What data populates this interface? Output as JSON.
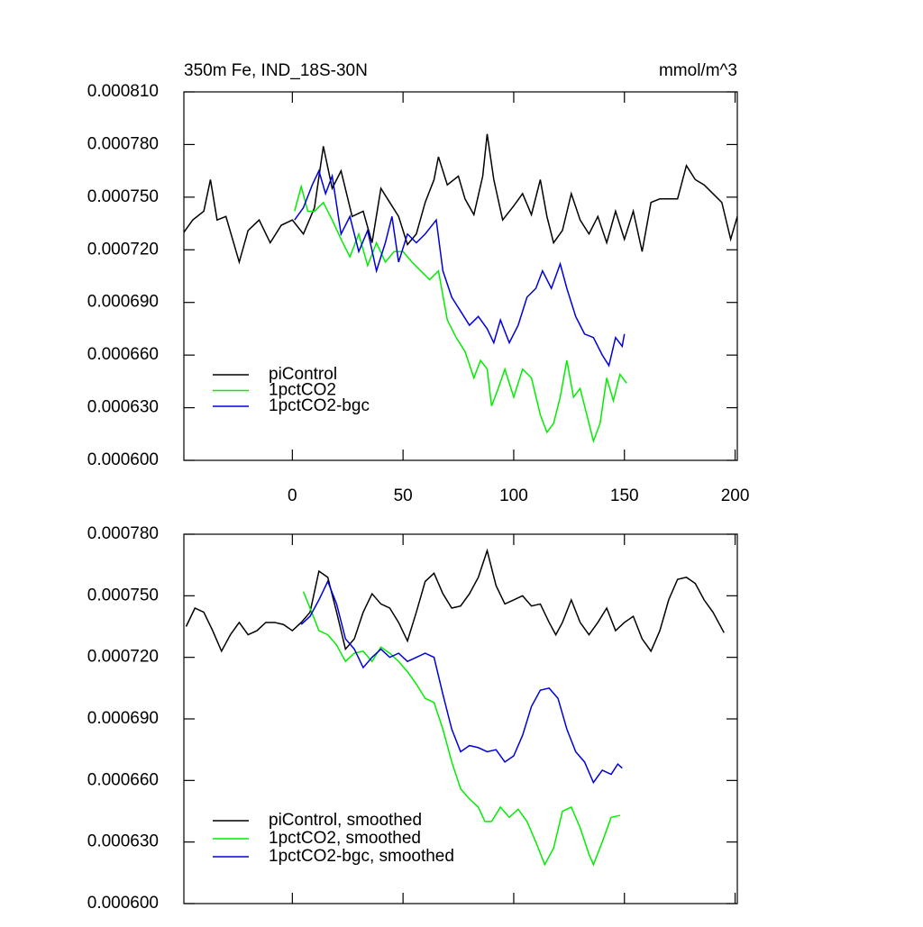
{
  "chart_data": [
    {
      "type": "line",
      "title": "350m Fe, IND_18S-30N",
      "units": "mmol/m^3",
      "legend": "lower left",
      "xlim": [
        -49,
        201
      ],
      "xticks": [
        0,
        50,
        100,
        150,
        200
      ],
      "ylim": [
        0.0006,
        0.00081
      ],
      "yticks": [
        {
          "value": 0.0006,
          "label": "0.000600"
        },
        {
          "value": 0.00063,
          "label": "0.000630"
        },
        {
          "value": 0.00066,
          "label": "0.000660"
        },
        {
          "value": 0.00069,
          "label": "0.000690"
        },
        {
          "value": 0.00072,
          "label": "0.000720"
        },
        {
          "value": 0.00075,
          "label": "0.000750"
        },
        {
          "value": 0.00078,
          "label": "0.000780"
        },
        {
          "value": 0.00081,
          "label": "0.000810"
        }
      ],
      "series": [
        {
          "name": "piControl",
          "color": "#000000",
          "x": [
            -49,
            -45,
            -40,
            -37,
            -34,
            -30,
            -27,
            -24,
            -20,
            -15,
            -10,
            -5,
            0,
            5,
            10,
            14,
            18,
            22,
            27,
            32,
            36,
            40,
            44,
            48,
            52,
            56,
            60,
            64,
            66,
            70,
            75,
            78,
            82,
            86,
            88,
            91,
            95,
            100,
            104,
            108,
            112,
            115,
            118,
            122,
            126,
            130,
            134,
            138,
            142,
            146,
            150,
            154,
            158,
            162,
            166,
            170,
            174,
            178,
            182,
            186,
            190,
            194,
            198,
            201
          ],
          "values": [
            0.00073,
            0.000737,
            0.000742,
            0.00076,
            0.000737,
            0.000739,
            0.000726,
            0.000713,
            0.000731,
            0.000737,
            0.000724,
            0.000734,
            0.000737,
            0.000729,
            0.000744,
            0.000779,
            0.000755,
            0.000765,
            0.000739,
            0.000742,
            0.000724,
            0.000755,
            0.000747,
            0.000739,
            0.000723,
            0.000729,
            0.000747,
            0.00076,
            0.000773,
            0.000757,
            0.000762,
            0.000749,
            0.00074,
            0.000762,
            0.000786,
            0.00076,
            0.000737,
            0.000745,
            0.000752,
            0.00074,
            0.00076,
            0.000739,
            0.000724,
            0.000731,
            0.000752,
            0.000737,
            0.000729,
            0.000739,
            0.000724,
            0.000742,
            0.000726,
            0.000742,
            0.000719,
            0.000747,
            0.000749,
            0.000749,
            0.000749,
            0.000768,
            0.00076,
            0.000757,
            0.000752,
            0.000747,
            0.000726,
            0.000739
          ]
        },
        {
          "name": "1pctCO2",
          "color": "#00ee00",
          "x": [
            1,
            4,
            7,
            10,
            14,
            18,
            22,
            26,
            30,
            34,
            38,
            42,
            46,
            50,
            54,
            58,
            62,
            66,
            70,
            74,
            78,
            82,
            85,
            88,
            90,
            93,
            96,
            100,
            104,
            108,
            112,
            115,
            118,
            121,
            124,
            127,
            130,
            133,
            136,
            139,
            142,
            145,
            148,
            151
          ],
          "values": [
            0.000742,
            0.000756,
            0.000742,
            0.000742,
            0.000747,
            0.000737,
            0.000726,
            0.000716,
            0.000729,
            0.000711,
            0.000724,
            0.000713,
            0.000719,
            0.000719,
            0.000713,
            0.000708,
            0.000703,
            0.000708,
            0.00068,
            0.00067,
            0.000662,
            0.000647,
            0.000657,
            0.000652,
            0.000631,
            0.000641,
            0.000652,
            0.000636,
            0.000652,
            0.000647,
            0.000626,
            0.000616,
            0.000621,
            0.000636,
            0.000657,
            0.000636,
            0.000641,
            0.000626,
            0.000611,
            0.000621,
            0.000647,
            0.000634,
            0.000649,
            0.000644
          ]
        },
        {
          "name": "1pctCO2-bgc",
          "color": "#0000dd",
          "x": [
            1,
            5,
            9,
            12,
            15,
            18,
            22,
            26,
            30,
            34,
            38,
            42,
            45,
            48,
            52,
            56,
            60,
            65,
            68,
            72,
            76,
            80,
            84,
            88,
            91,
            94,
            98,
            102,
            106,
            110,
            113,
            117,
            121,
            124,
            128,
            132,
            136,
            140,
            143,
            146,
            149,
            150
          ],
          "values": [
            0.000737,
            0.000744,
            0.000757,
            0.000765,
            0.000752,
            0.000762,
            0.000729,
            0.000739,
            0.000719,
            0.000731,
            0.000708,
            0.000724,
            0.000739,
            0.000713,
            0.000729,
            0.000724,
            0.000729,
            0.000737,
            0.000708,
            0.000693,
            0.000685,
            0.000677,
            0.000682,
            0.000675,
            0.000667,
            0.00068,
            0.000667,
            0.000677,
            0.000693,
            0.000698,
            0.000708,
            0.000698,
            0.000712,
            0.000698,
            0.000682,
            0.000672,
            0.00067,
            0.00066,
            0.000654,
            0.00067,
            0.000665,
            0.000672
          ]
        }
      ]
    },
    {
      "type": "line",
      "legend": "lower left",
      "xlim": [
        -49,
        201
      ],
      "ylim": [
        0.0006,
        0.00078
      ],
      "yticks": [
        {
          "value": 0.0006,
          "label": "0.000600"
        },
        {
          "value": 0.00063,
          "label": "0.000630"
        },
        {
          "value": 0.00066,
          "label": "0.000660"
        },
        {
          "value": 0.00069,
          "label": "0.000690"
        },
        {
          "value": 0.00072,
          "label": "0.000720"
        },
        {
          "value": 0.00075,
          "label": "0.000750"
        },
        {
          "value": 0.00078,
          "label": "0.000780"
        }
      ],
      "series": [
        {
          "name": "piControl, smoothed",
          "color": "#000000",
          "x": [
            -48,
            -44,
            -40,
            -36,
            -32,
            -28,
            -24,
            -20,
            -16,
            -12,
            -8,
            -4,
            0,
            4,
            8,
            12,
            16,
            20,
            24,
            28,
            32,
            36,
            40,
            44,
            48,
            52,
            56,
            60,
            64,
            68,
            72,
            76,
            80,
            84,
            88,
            92,
            96,
            100,
            104,
            108,
            112,
            116,
            119,
            122,
            126,
            130,
            134,
            138,
            142,
            146,
            150,
            154,
            158,
            162,
            166,
            170,
            174,
            178,
            182,
            186,
            190,
            195
          ],
          "values": [
            0.000735,
            0.000744,
            0.000742,
            0.000733,
            0.000723,
            0.000731,
            0.000737,
            0.000731,
            0.000733,
            0.000737,
            0.000737,
            0.000736,
            0.000733,
            0.000737,
            0.000742,
            0.000762,
            0.000759,
            0.000742,
            0.000724,
            0.000729,
            0.000742,
            0.000751,
            0.000746,
            0.000744,
            0.000737,
            0.000728,
            0.000742,
            0.000757,
            0.000761,
            0.000751,
            0.000744,
            0.000745,
            0.000751,
            0.000759,
            0.000772,
            0.000755,
            0.000746,
            0.000748,
            0.00075,
            0.000745,
            0.000746,
            0.000737,
            0.000731,
            0.000737,
            0.000748,
            0.000737,
            0.000731,
            0.000737,
            0.000744,
            0.000733,
            0.000737,
            0.00074,
            0.000729,
            0.000723,
            0.000733,
            0.000748,
            0.000758,
            0.000759,
            0.000756,
            0.000748,
            0.000742,
            0.000732
          ]
        },
        {
          "name": "1pctCO2, smoothed",
          "color": "#00ee00",
          "x": [
            5,
            8,
            12,
            16,
            20,
            24,
            28,
            32,
            36,
            40,
            44,
            48,
            52,
            56,
            60,
            64,
            68,
            72,
            76,
            80,
            84,
            87,
            90,
            94,
            98,
            102,
            106,
            110,
            114,
            118,
            122,
            126,
            130,
            134,
            136,
            140,
            144,
            148
          ],
          "values": [
            0.000752,
            0.000744,
            0.000733,
            0.000731,
            0.000726,
            0.000718,
            0.000722,
            0.000723,
            0.000718,
            0.000725,
            0.000722,
            0.000718,
            0.000713,
            0.000707,
            0.0007,
            0.000698,
            0.000685,
            0.000669,
            0.000656,
            0.000651,
            0.000647,
            0.00064,
            0.00064,
            0.000647,
            0.000642,
            0.000646,
            0.00064,
            0.00063,
            0.000619,
            0.000627,
            0.000645,
            0.000647,
            0.000637,
            0.000624,
            0.000619,
            0.00063,
            0.000642,
            0.000643
          ]
        },
        {
          "name": "1pctCO2-bgc, smoothed",
          "color": "#0000dd",
          "x": [
            4,
            8,
            12,
            16,
            20,
            24,
            28,
            32,
            36,
            40,
            44,
            48,
            52,
            56,
            60,
            64,
            68,
            72,
            76,
            80,
            84,
            88,
            92,
            96,
            100,
            104,
            108,
            112,
            116,
            120,
            124,
            128,
            132,
            136,
            140,
            144,
            147,
            149
          ],
          "values": [
            0.000736,
            0.00074,
            0.000748,
            0.000757,
            0.000746,
            0.000729,
            0.000724,
            0.000715,
            0.00072,
            0.000724,
            0.00072,
            0.000722,
            0.000718,
            0.00072,
            0.000722,
            0.00072,
            0.000702,
            0.000685,
            0.000674,
            0.000677,
            0.000676,
            0.000674,
            0.000675,
            0.000669,
            0.000672,
            0.000682,
            0.000696,
            0.000704,
            0.000705,
            0.0007,
            0.000685,
            0.000674,
            0.000669,
            0.000659,
            0.000665,
            0.000663,
            0.000668,
            0.000666
          ]
        }
      ]
    }
  ]
}
